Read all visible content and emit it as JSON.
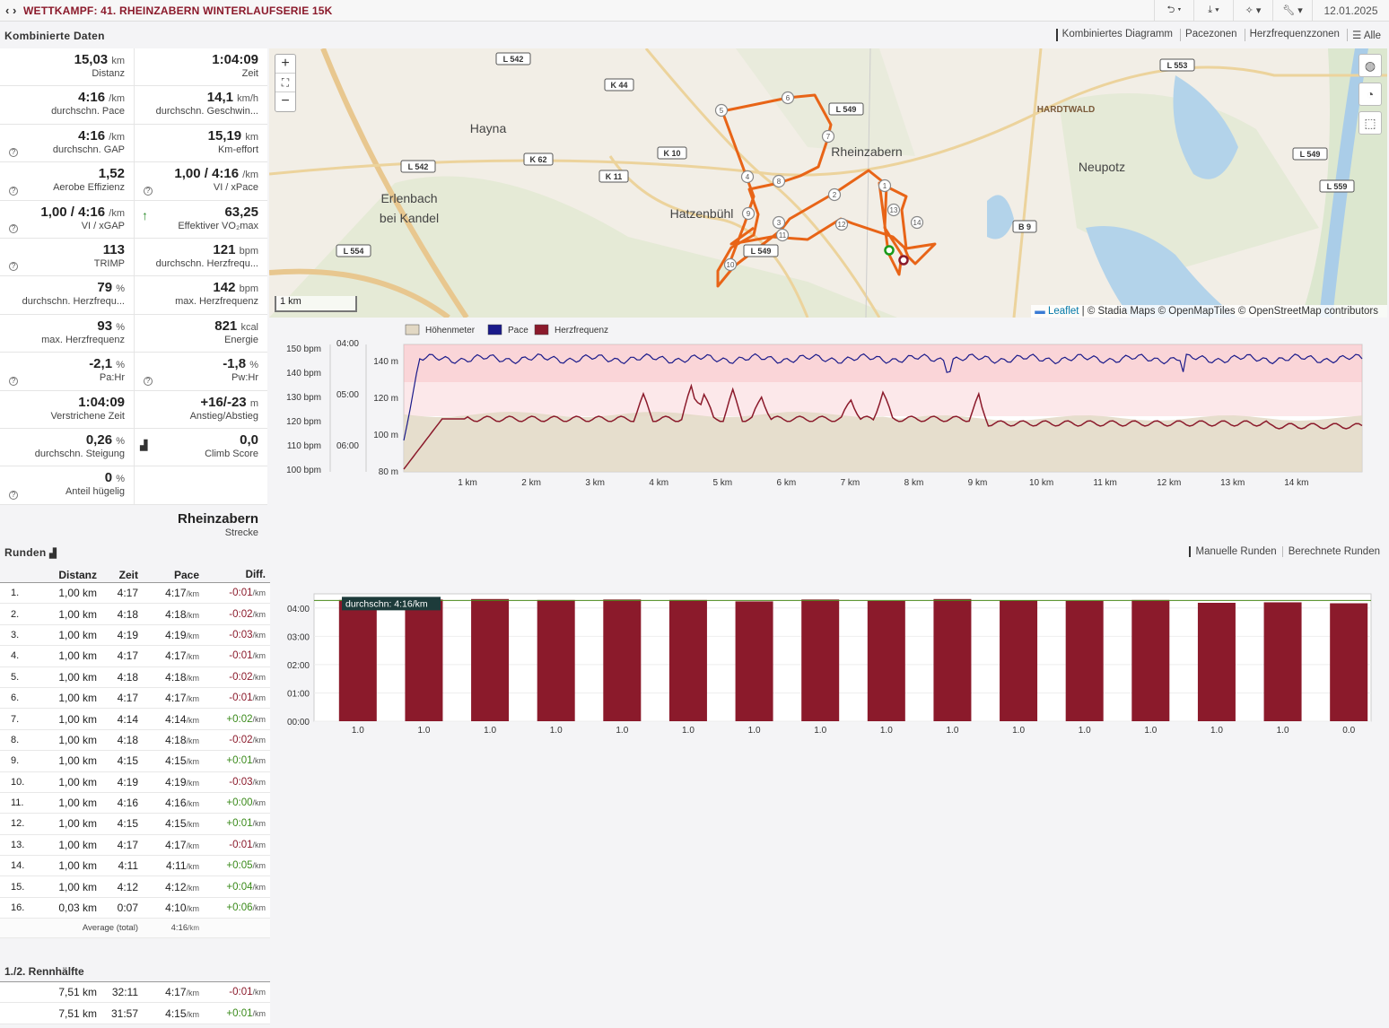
{
  "topbar": {
    "nav": "‹ ›",
    "title": "WETTKAMPF: 41. RHEINZABERN WINTERLAUFSERIE 15K",
    "tools": [
      "share",
      "download",
      "magic",
      "wrench"
    ],
    "date": "12.01.2025"
  },
  "combined": {
    "heading": "Kombinierte Daten",
    "views": [
      "Kombiniertes Diagramm",
      "Pacezonen",
      "Herzfrequenzzonen",
      "☰ Alle"
    ]
  },
  "stats": [
    [
      {
        "v": "15,03",
        "u": "km",
        "l": "Distanz"
      },
      {
        "v": "1:04:09",
        "u": "",
        "l": "Zeit"
      }
    ],
    [
      {
        "v": "4:16",
        "u": "/km",
        "l": "durchschn. Pace"
      },
      {
        "v": "14,1",
        "u": "km/h",
        "l": "durchschn. Geschwin..."
      }
    ],
    [
      {
        "v": "4:16",
        "u": "/km",
        "l": "durchschn. GAP",
        "q": true
      },
      {
        "v": "15,19",
        "u": "km",
        "l": "Km-effort"
      }
    ],
    [
      {
        "v": "1,52",
        "u": "",
        "l": "Aerobe Effizienz",
        "q": true
      },
      {
        "v": "1,00 / 4:16",
        "u": "/km",
        "l": "VI / xPace",
        "q": true
      }
    ],
    [
      {
        "v": "1,00 / 4:16",
        "u": "/km",
        "l": "VI / xGAP",
        "q": true
      },
      {
        "v": "63,25",
        "u": "",
        "l": "Effektiver VO₂max",
        "up": true
      }
    ],
    [
      {
        "v": "113",
        "u": "",
        "l": "TRIMP",
        "q": true
      },
      {
        "v": "121",
        "u": "bpm",
        "l": "durchschn. Herzfrequ..."
      }
    ],
    [
      {
        "v": "79",
        "u": "%",
        "l": "durchschn. Herzfrequ..."
      },
      {
        "v": "142",
        "u": "bpm",
        "l": "max. Herzfrequenz"
      }
    ],
    [
      {
        "v": "93",
        "u": "%",
        "l": "max. Herzfrequenz"
      },
      {
        "v": "821",
        "u": "kcal",
        "l": "Energie"
      }
    ],
    [
      {
        "v": "-2,1",
        "u": "%",
        "l": "Pa:Hr",
        "q": true
      },
      {
        "v": "-1,8",
        "u": "%",
        "l": "Pw:Hr",
        "q": true
      }
    ],
    [
      {
        "v": "1:04:09",
        "u": "",
        "l": "Verstrichene Zeit"
      },
      {
        "v": "+16/-23",
        "u": "m",
        "l": "Anstieg/Abstieg"
      }
    ],
    [
      {
        "v": "0,26",
        "u": "%",
        "l": "durchschn. Steigung"
      },
      {
        "v": "0,0",
        "u": "",
        "l": "Climb Score",
        "mtn": true
      }
    ],
    [
      {
        "v": "0",
        "u": "%",
        "l": "Anteil hügelig",
        "q": true
      },
      null
    ]
  ],
  "route": {
    "name": "Rheinzabern",
    "label": "Strecke"
  },
  "map": {
    "places": [
      {
        "t": "Hayna"
      },
      {
        "t": "Erlenbach"
      },
      {
        "t": "bei Kandel"
      },
      {
        "t": "Hatzenbühl"
      },
      {
        "t": "Rheinzabern"
      },
      {
        "t": "Neupotz"
      },
      {
        "t": "HARDTWALD"
      }
    ],
    "roads": [
      "L 542",
      "K 44",
      "L 549",
      "L 553",
      "K 62",
      "K 10",
      "K 11",
      "L 542",
      "L 554",
      "L 549",
      "B 9",
      "L 549",
      "L 559"
    ],
    "markers": [
      "1",
      "2",
      "3",
      "4",
      "5",
      "6",
      "7",
      "8",
      "9",
      "10",
      "11",
      "12",
      "13",
      "14"
    ],
    "scale": "1 km",
    "attribution_leaflet": "Leaflet",
    "attribution": " | © Stadia Maps © OpenMapTiles © OpenStreetMap contributors",
    "zoom": [
      "+",
      "⛶",
      "−"
    ]
  },
  "chart_data": [
    {
      "type": "line",
      "legend": [
        "Höhenmeter",
        "Pace",
        "Herzfrequenz"
      ],
      "colors": {
        "elev": "#e2d8c4",
        "pace": "#1a1a8a",
        "hr": "#8b1a2b"
      },
      "x_ticks": [
        "1 km",
        "2 km",
        "3 km",
        "4 km",
        "5 km",
        "6 km",
        "7 km",
        "8 km",
        "9 km",
        "10 km",
        "11 km",
        "12 km",
        "13 km",
        "14 km"
      ],
      "y_hr_ticks": [
        "150 bpm",
        "140 bpm",
        "130 bpm",
        "120 bpm",
        "110 bpm",
        "100 bpm"
      ],
      "y_pace_ticks": [
        "04:00",
        "05:00",
        "06:00"
      ],
      "y_elev_ticks": [
        "140 m",
        "120 m",
        "100 m",
        "80 m"
      ],
      "xlim": [
        0,
        15.03
      ]
    },
    {
      "type": "bar",
      "title": "",
      "categories": [
        "1.0",
        "1.0",
        "1.0",
        "1.0",
        "1.0",
        "1.0",
        "1.0",
        "1.0",
        "1.0",
        "1.0",
        "1.0",
        "1.0",
        "1.0",
        "1.0",
        "1.0",
        "0.0"
      ],
      "values_sec": [
        257,
        258,
        259,
        257,
        258,
        257,
        254,
        258,
        255,
        259,
        256,
        255,
        257,
        251,
        252,
        250
      ],
      "y_ticks": [
        "04:00",
        "03:00",
        "02:00",
        "01:00",
        "00:00"
      ],
      "ylim_sec": [
        0,
        270
      ],
      "avg_label": "durchschn: 4:16/km",
      "avg_sec": 256,
      "bar_color": "#8b1a2b",
      "avg_color": "#4a8a1a"
    }
  ],
  "laps": {
    "heading": "Runden",
    "views": [
      "Manuelle Runden",
      "Berechnete Runden"
    ],
    "cols": [
      "",
      "Distanz",
      "Zeit",
      "Pace",
      "Diff."
    ],
    "rows": [
      [
        "1.",
        "1,00 km",
        "4:17",
        "4:17",
        "-0:01"
      ],
      [
        "2.",
        "1,00 km",
        "4:18",
        "4:18",
        "-0:02"
      ],
      [
        "3.",
        "1,00 km",
        "4:19",
        "4:19",
        "-0:03"
      ],
      [
        "4.",
        "1,00 km",
        "4:17",
        "4:17",
        "-0:01"
      ],
      [
        "5.",
        "1,00 km",
        "4:18",
        "4:18",
        "-0:02"
      ],
      [
        "6.",
        "1,00 km",
        "4:17",
        "4:17",
        "-0:01"
      ],
      [
        "7.",
        "1,00 km",
        "4:14",
        "4:14",
        "+0:02"
      ],
      [
        "8.",
        "1,00 km",
        "4:18",
        "4:18",
        "-0:02"
      ],
      [
        "9.",
        "1,00 km",
        "4:15",
        "4:15",
        "+0:01"
      ],
      [
        "10.",
        "1,00 km",
        "4:19",
        "4:19",
        "-0:03"
      ],
      [
        "11.",
        "1,00 km",
        "4:16",
        "4:16",
        "+0:00"
      ],
      [
        "12.",
        "1,00 km",
        "4:15",
        "4:15",
        "+0:01"
      ],
      [
        "13.",
        "1,00 km",
        "4:17",
        "4:17",
        "-0:01"
      ],
      [
        "14.",
        "1,00 km",
        "4:11",
        "4:11",
        "+0:05"
      ],
      [
        "15.",
        "1,00 km",
        "4:12",
        "4:12",
        "+0:04"
      ],
      [
        "16.",
        "0,03 km",
        "0:07",
        "4:10",
        "+0:06"
      ]
    ],
    "unit": "/km",
    "avg_label": "Average (total)",
    "avg_pace": "4:16"
  },
  "halves": {
    "heading": "1./2. Rennhälfte",
    "rows": [
      [
        "7,51 km",
        "32:11",
        "4:17",
        "-0:01"
      ],
      [
        "7,51 km",
        "31:57",
        "4:15",
        "+0:01"
      ]
    ]
  }
}
